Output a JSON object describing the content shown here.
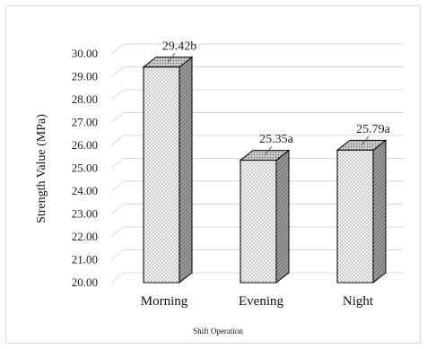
{
  "chart_data": {
    "type": "bar",
    "style": "3d-column",
    "categories": [
      "Morning",
      "Evening",
      "Night"
    ],
    "values": [
      29.42,
      25.35,
      25.79
    ],
    "data_labels": [
      "29.42b",
      "25.35a",
      "25.79a"
    ],
    "ylabel": "Strength Value (MPa)",
    "xlabel": "Shift Operation",
    "ylim": [
      20.0,
      30.0
    ],
    "ytick_step": 1.0,
    "ytick_labels": [
      "20.00",
      "21.00",
      "22.00",
      "23.00",
      "24.00",
      "25.00",
      "26.00",
      "27.00",
      "28.00",
      "29.00",
      "30.00"
    ],
    "grid": true,
    "legend": "none",
    "colors": {
      "bar_front": "#f2f2f2",
      "bar_side": "#8c8c8c",
      "bar_top": "#b3b3b3",
      "bar_outline": "#000000",
      "grid": "#d9d9d9"
    }
  }
}
